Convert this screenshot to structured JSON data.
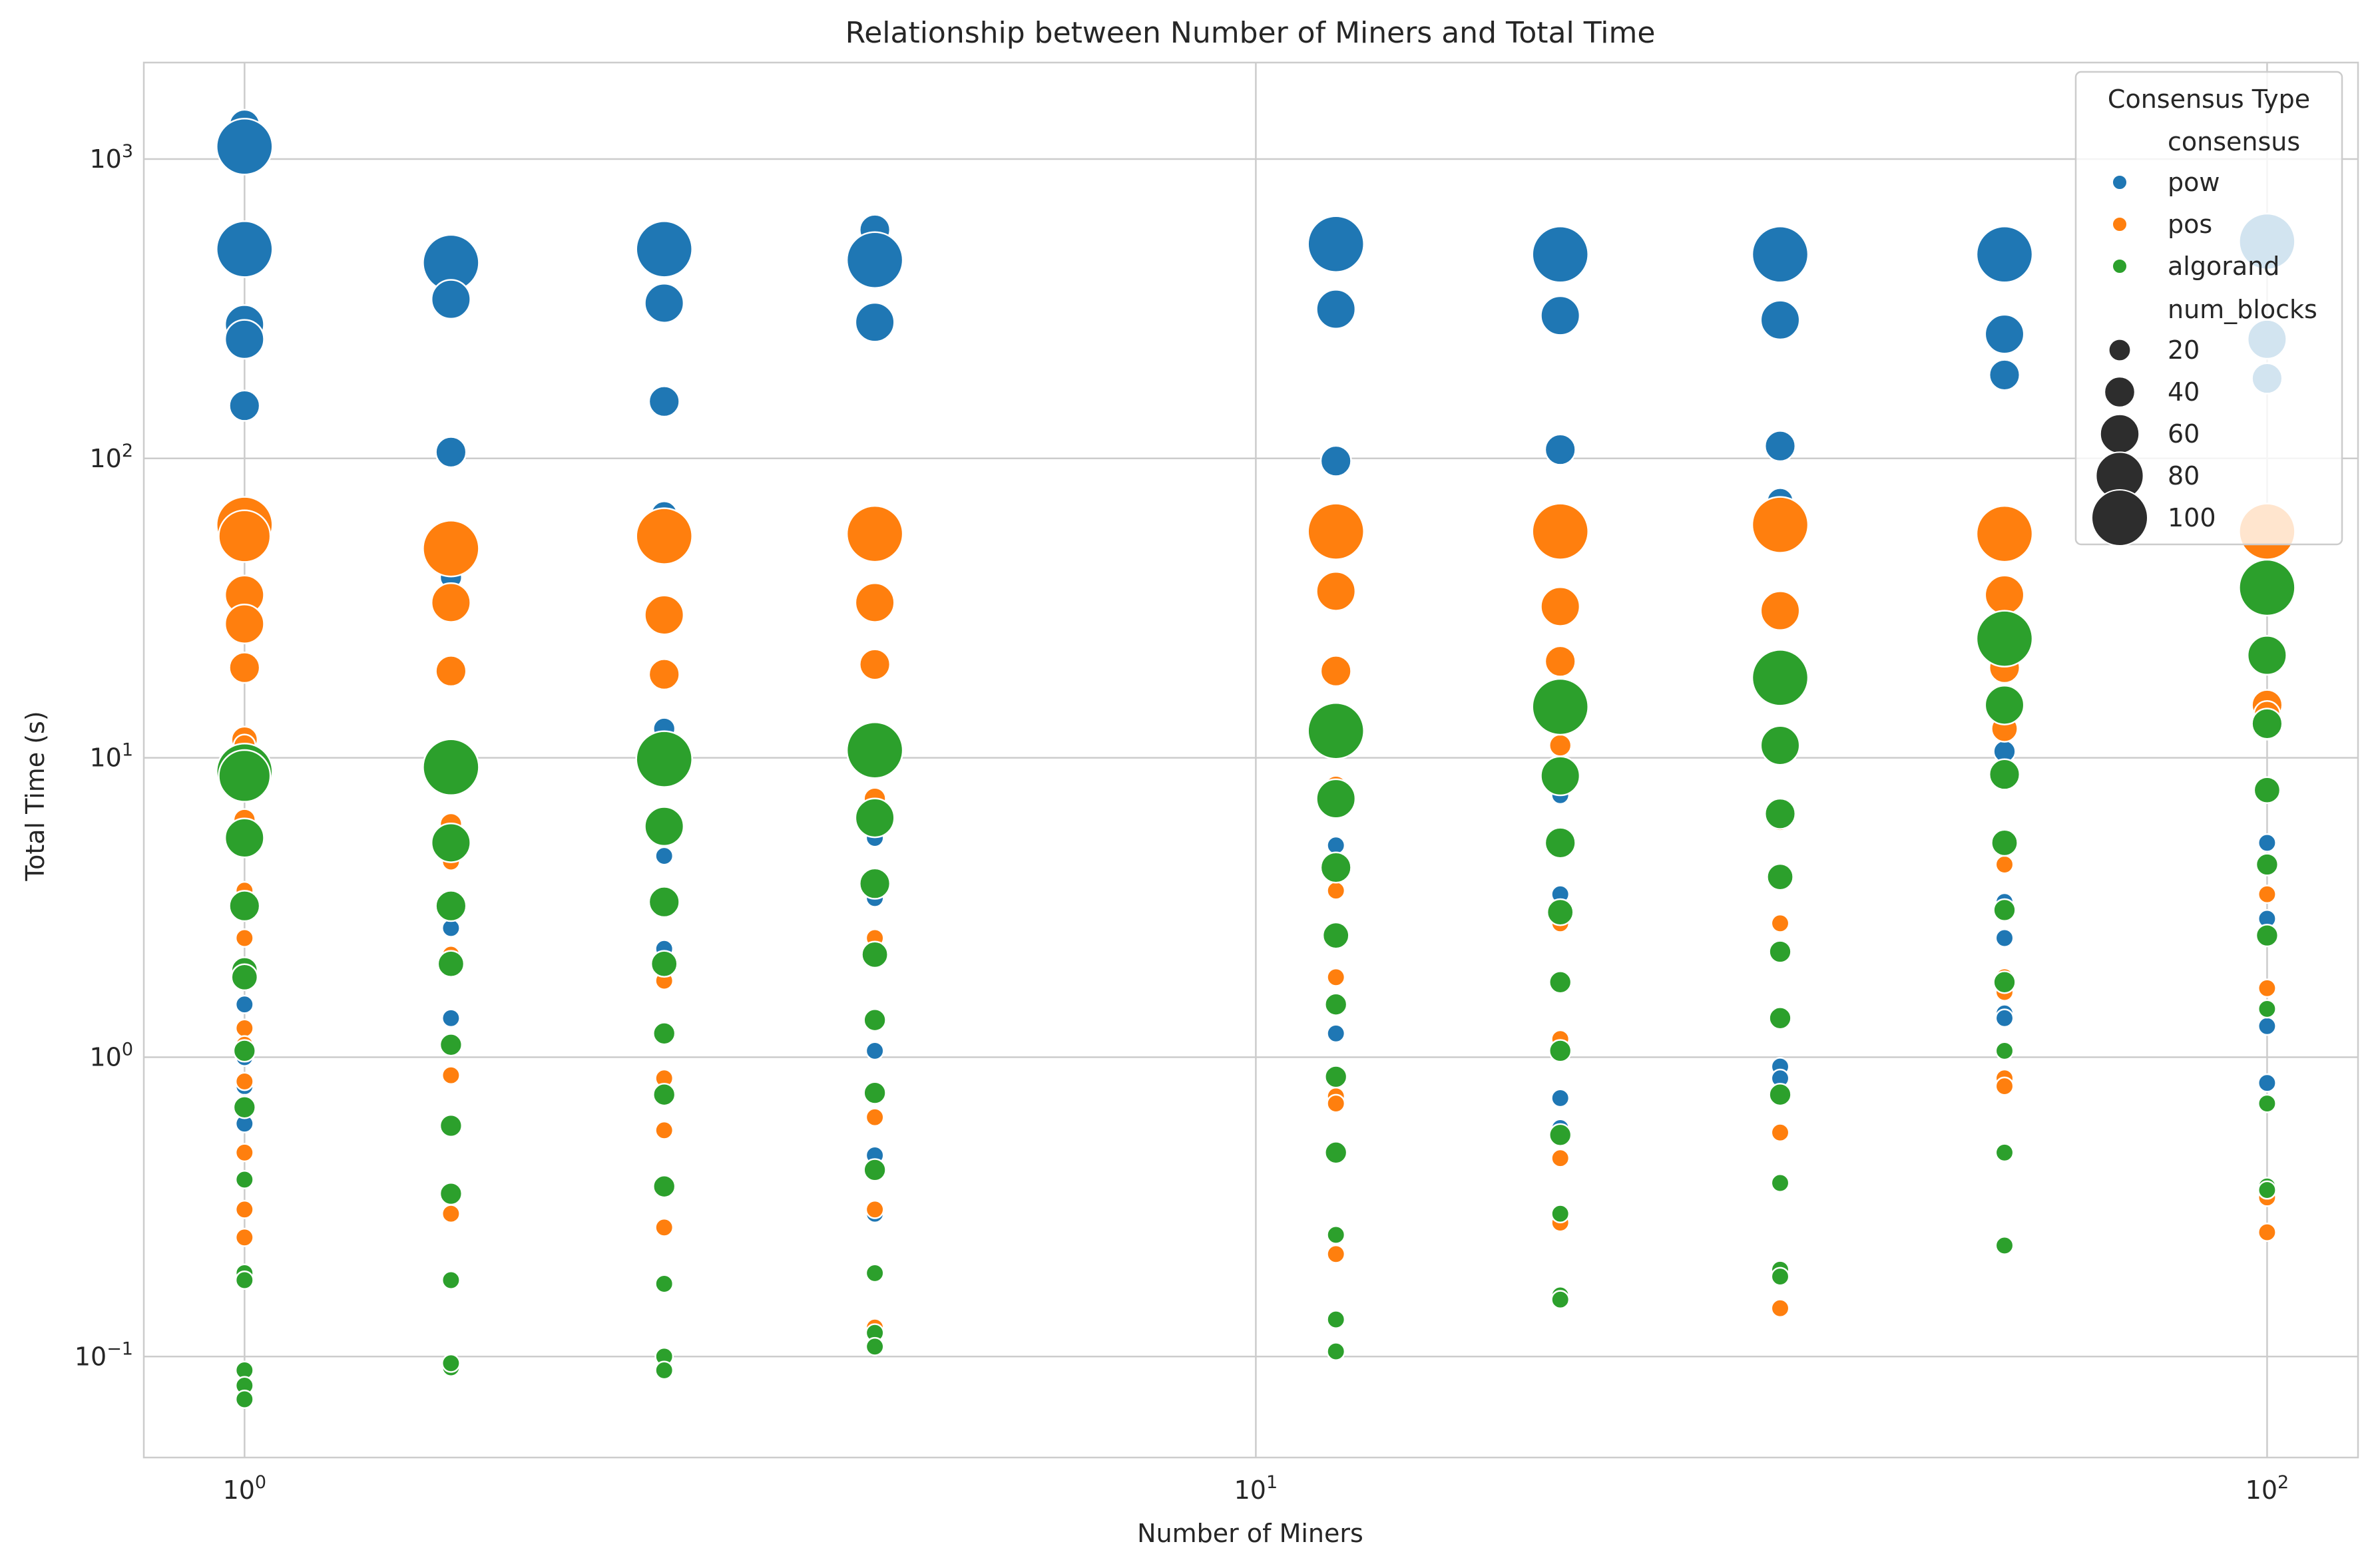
{
  "chart_data": {
    "type": "scatter",
    "title": "Relationship between Number of Miners and Total Time",
    "xlabel": "Number of Miners",
    "ylabel": "Total Time (s)",
    "xscale": "log",
    "yscale": "log",
    "xlim": [
      0.795,
      123
    ],
    "ylim": [
      0.046,
      2100
    ],
    "x_ticks": [
      {
        "value": 1,
        "base": "10",
        "exp": "0"
      },
      {
        "value": 10,
        "base": "10",
        "exp": "1"
      },
      {
        "value": 100,
        "base": "10",
        "exp": "2"
      }
    ],
    "y_ticks": [
      {
        "value": 0.1,
        "base": "10",
        "exp": "−1"
      },
      {
        "value": 1,
        "base": "10",
        "exp": "0"
      },
      {
        "value": 10,
        "base": "10",
        "exp": "1"
      },
      {
        "value": 100,
        "base": "10",
        "exp": "2"
      },
      {
        "value": 1000,
        "base": "10",
        "exp": "3"
      }
    ],
    "grid": true,
    "legend": {
      "title": "Consensus Type",
      "placement": "top-right",
      "hue_title": "consensus",
      "size_title": "num_blocks",
      "size_entries": [
        {
          "label": "20",
          "value": 20
        },
        {
          "label": "40",
          "value": 40
        },
        {
          "label": "60",
          "value": 60
        },
        {
          "label": "80",
          "value": 80
        },
        {
          "label": "100",
          "value": 100
        }
      ]
    },
    "colors": {
      "pow": "#1f77b4",
      "pos": "#ff7f0e",
      "algorand": "#2ca02c"
    },
    "series": [
      {
        "name": "pow",
        "points": [
          [
            1,
            1300,
            40
          ],
          [
            1,
            1100,
            100
          ],
          [
            1,
            500,
            100
          ],
          [
            1,
            280,
            60
          ],
          [
            1,
            250,
            60
          ],
          [
            1,
            150,
            40
          ],
          [
            1,
            35,
            30
          ],
          [
            1,
            10,
            20
          ],
          [
            1,
            1.5,
            10
          ],
          [
            1,
            1.0,
            10
          ],
          [
            1,
            0.8,
            10
          ],
          [
            1,
            0.7,
            10
          ],
          [
            1,
            0.6,
            10
          ],
          [
            1.6,
            450,
            100
          ],
          [
            1.6,
            340,
            60
          ],
          [
            1.6,
            105,
            40
          ],
          [
            1.6,
            40,
            20
          ],
          [
            1.6,
            2.7,
            10
          ],
          [
            1.6,
            1.35,
            10
          ],
          [
            2.6,
            500,
            100
          ],
          [
            2.6,
            330,
            60
          ],
          [
            2.6,
            155,
            40
          ],
          [
            2.6,
            65,
            30
          ],
          [
            2.6,
            12.5,
            20
          ],
          [
            2.6,
            4.7,
            10
          ],
          [
            2.6,
            2.3,
            10
          ],
          [
            2.6,
            0.38,
            10
          ],
          [
            4.2,
            580,
            40
          ],
          [
            4.2,
            460,
            100
          ],
          [
            4.2,
            285,
            60
          ],
          [
            4.2,
            5.4,
            10
          ],
          [
            4.2,
            3.4,
            10
          ],
          [
            4.2,
            1.05,
            10
          ],
          [
            4.2,
            0.47,
            10
          ],
          [
            4.2,
            0.3,
            10
          ],
          [
            12,
            520,
            100
          ],
          [
            12,
            315,
            60
          ],
          [
            12,
            98,
            40
          ],
          [
            12,
            5.1,
            10
          ],
          [
            12,
            1.2,
            10
          ],
          [
            12,
            0.47,
            10
          ],
          [
            20,
            480,
            100
          ],
          [
            20,
            300,
            60
          ],
          [
            20,
            107,
            40
          ],
          [
            20,
            7.5,
            10
          ],
          [
            20,
            3.5,
            10
          ],
          [
            20,
            0.73,
            10
          ],
          [
            20,
            0.58,
            10
          ],
          [
            33,
            480,
            100
          ],
          [
            33,
            290,
            60
          ],
          [
            33,
            110,
            40
          ],
          [
            33,
            72,
            30
          ],
          [
            33,
            0.93,
            10
          ],
          [
            33,
            0.85,
            10
          ],
          [
            55,
            480,
            100
          ],
          [
            55,
            260,
            60
          ],
          [
            55,
            190,
            40
          ],
          [
            55,
            10.5,
            20
          ],
          [
            55,
            3.3,
            10
          ],
          [
            55,
            2.5,
            10
          ],
          [
            55,
            1.4,
            10
          ],
          [
            55,
            1.35,
            10
          ],
          [
            100,
            530,
            100
          ],
          [
            100,
            250,
            60
          ],
          [
            100,
            185,
            40
          ],
          [
            100,
            15.5,
            20
          ],
          [
            100,
            5.2,
            10
          ],
          [
            100,
            2.9,
            10
          ],
          [
            100,
            1.27,
            10
          ],
          [
            100,
            0.82,
            10
          ]
        ]
      },
      {
        "name": "pos",
        "points": [
          [
            1,
            60,
            100
          ],
          [
            1,
            55,
            90
          ],
          [
            1,
            35,
            60
          ],
          [
            1,
            28,
            60
          ],
          [
            1,
            20,
            40
          ],
          [
            1,
            11.5,
            30
          ],
          [
            1,
            11,
            20
          ],
          [
            1,
            6.2,
            20
          ],
          [
            1,
            3.6,
            10
          ],
          [
            1,
            2.5,
            10
          ],
          [
            1,
            1.25,
            10
          ],
          [
            1,
            1.1,
            10
          ],
          [
            1,
            0.83,
            10
          ],
          [
            1,
            0.48,
            10
          ],
          [
            1,
            0.31,
            10
          ],
          [
            1,
            0.25,
            10
          ],
          [
            1.6,
            50,
            100
          ],
          [
            1.6,
            33,
            60
          ],
          [
            1.6,
            19.5,
            40
          ],
          [
            1.6,
            6,
            20
          ],
          [
            1.6,
            4.5,
            10
          ],
          [
            1.6,
            2.2,
            10
          ],
          [
            1.6,
            0.87,
            10
          ],
          [
            1.6,
            0.3,
            10
          ],
          [
            2.6,
            55,
            100
          ],
          [
            2.6,
            30,
            60
          ],
          [
            2.6,
            19,
            40
          ],
          [
            2.6,
            6.2,
            20
          ],
          [
            2.6,
            1.8,
            10
          ],
          [
            2.6,
            0.85,
            10
          ],
          [
            2.6,
            0.57,
            10
          ],
          [
            2.6,
            0.27,
            10
          ],
          [
            4.2,
            56,
            100
          ],
          [
            4.2,
            33,
            60
          ],
          [
            4.2,
            20.5,
            40
          ],
          [
            4.2,
            7.3,
            20
          ],
          [
            4.2,
            4,
            10
          ],
          [
            4.2,
            2.5,
            10
          ],
          [
            4.2,
            0.63,
            10
          ],
          [
            4.2,
            0.31,
            10
          ],
          [
            4.2,
            0.125,
            10
          ],
          [
            12,
            57,
            100
          ],
          [
            12,
            36,
            60
          ],
          [
            12,
            19.5,
            40
          ],
          [
            12,
            8,
            20
          ],
          [
            12,
            3.6,
            10
          ],
          [
            12,
            1.85,
            10
          ],
          [
            12,
            0.74,
            10
          ],
          [
            12,
            0.7,
            10
          ],
          [
            12,
            0.22,
            10
          ],
          [
            20,
            57,
            100
          ],
          [
            20,
            32,
            60
          ],
          [
            20,
            21,
            40
          ],
          [
            20,
            11,
            20
          ],
          [
            20,
            2.8,
            10
          ],
          [
            20,
            1.15,
            10
          ],
          [
            20,
            0.46,
            10
          ],
          [
            20,
            0.28,
            10
          ],
          [
            33,
            60,
            100
          ],
          [
            33,
            31,
            60
          ],
          [
            33,
            6.2,
            20
          ],
          [
            33,
            2.8,
            10
          ],
          [
            33,
            0.56,
            10
          ],
          [
            33,
            0.145,
            10
          ],
          [
            55,
            56,
            100
          ],
          [
            55,
            35,
            60
          ],
          [
            55,
            20,
            40
          ],
          [
            55,
            12.5,
            30
          ],
          [
            55,
            4.4,
            10
          ],
          [
            55,
            1.85,
            10
          ],
          [
            55,
            1.65,
            10
          ],
          [
            55,
            0.85,
            10
          ],
          [
            55,
            0.8,
            10
          ],
          [
            100,
            57,
            100
          ],
          [
            100,
            15,
            40
          ],
          [
            100,
            14,
            30
          ],
          [
            100,
            12.5,
            20
          ],
          [
            100,
            3.5,
            10
          ],
          [
            100,
            1.7,
            10
          ],
          [
            100,
            0.34,
            10
          ],
          [
            100,
            0.26,
            10
          ]
        ]
      },
      {
        "name": "algorand",
        "points": [
          [
            1,
            9,
            100
          ],
          [
            1,
            8.7,
            90
          ],
          [
            1,
            5.4,
            60
          ],
          [
            1,
            3.2,
            40
          ],
          [
            1,
            1.95,
            30
          ],
          [
            1,
            1.85,
            30
          ],
          [
            1,
            1.05,
            20
          ],
          [
            1,
            0.68,
            20
          ],
          [
            1,
            0.39,
            10
          ],
          [
            1,
            0.19,
            10
          ],
          [
            1,
            0.18,
            10
          ],
          [
            1,
            0.09,
            10
          ],
          [
            1,
            0.08,
            10
          ],
          [
            1,
            0.072,
            10
          ],
          [
            1.6,
            9.3,
            100
          ],
          [
            1.6,
            5.2,
            60
          ],
          [
            1.6,
            3.2,
            40
          ],
          [
            1.6,
            2.05,
            30
          ],
          [
            1.6,
            1.1,
            20
          ],
          [
            1.6,
            0.59,
            20
          ],
          [
            1.6,
            0.35,
            20
          ],
          [
            1.6,
            0.18,
            10
          ],
          [
            1.6,
            0.092,
            10
          ],
          [
            1.6,
            0.095,
            10
          ],
          [
            2.6,
            9.9,
            100
          ],
          [
            2.6,
            5.9,
            60
          ],
          [
            2.6,
            3.3,
            40
          ],
          [
            2.6,
            2.05,
            30
          ],
          [
            2.6,
            1.2,
            20
          ],
          [
            2.6,
            0.75,
            20
          ],
          [
            2.6,
            0.37,
            20
          ],
          [
            2.6,
            0.175,
            10
          ],
          [
            2.6,
            0.1,
            10
          ],
          [
            2.6,
            0.09,
            10
          ],
          [
            4.2,
            10.6,
            100
          ],
          [
            4.2,
            6.3,
            60
          ],
          [
            4.2,
            3.8,
            40
          ],
          [
            4.2,
            2.2,
            30
          ],
          [
            4.2,
            1.33,
            20
          ],
          [
            4.2,
            0.76,
            20
          ],
          [
            4.2,
            0.42,
            20
          ],
          [
            4.2,
            0.19,
            10
          ],
          [
            4.2,
            0.12,
            10
          ],
          [
            4.2,
            0.108,
            10
          ],
          [
            12,
            12.3,
            100
          ],
          [
            12,
            7.3,
            60
          ],
          [
            12,
            4.3,
            40
          ],
          [
            12,
            2.55,
            30
          ],
          [
            12,
            1.5,
            20
          ],
          [
            12,
            0.86,
            20
          ],
          [
            12,
            0.48,
            20
          ],
          [
            12,
            0.255,
            10
          ],
          [
            12,
            0.133,
            10
          ],
          [
            12,
            0.104,
            10
          ],
          [
            20,
            14.8,
            100
          ],
          [
            20,
            8.7,
            60
          ],
          [
            20,
            5.2,
            40
          ],
          [
            20,
            3.05,
            30
          ],
          [
            20,
            1.78,
            20
          ],
          [
            20,
            1.05,
            20
          ],
          [
            20,
            0.55,
            20
          ],
          [
            20,
            0.3,
            10
          ],
          [
            20,
            0.16,
            10
          ],
          [
            20,
            0.155,
            10
          ],
          [
            33,
            18.5,
            100
          ],
          [
            33,
            11,
            60
          ],
          [
            33,
            6.5,
            40
          ],
          [
            33,
            4,
            30
          ],
          [
            33,
            2.25,
            20
          ],
          [
            33,
            1.35,
            20
          ],
          [
            33,
            0.75,
            20
          ],
          [
            33,
            0.38,
            10
          ],
          [
            33,
            0.195,
            10
          ],
          [
            33,
            0.185,
            10
          ],
          [
            55,
            25,
            100
          ],
          [
            55,
            15,
            60
          ],
          [
            55,
            8.8,
            40
          ],
          [
            55,
            5.2,
            30
          ],
          [
            55,
            3.1,
            20
          ],
          [
            55,
            1.78,
            20
          ],
          [
            55,
            1.05,
            10
          ],
          [
            55,
            0.48,
            10
          ],
          [
            55,
            0.235,
            10
          ],
          [
            100,
            37,
            100
          ],
          [
            100,
            22,
            60
          ],
          [
            100,
            13,
            40
          ],
          [
            100,
            7.8,
            30
          ],
          [
            100,
            4.4,
            20
          ],
          [
            100,
            2.55,
            20
          ],
          [
            100,
            1.45,
            10
          ],
          [
            100,
            0.7,
            10
          ],
          [
            100,
            0.37,
            10
          ],
          [
            100,
            0.36,
            10
          ]
        ]
      }
    ]
  }
}
